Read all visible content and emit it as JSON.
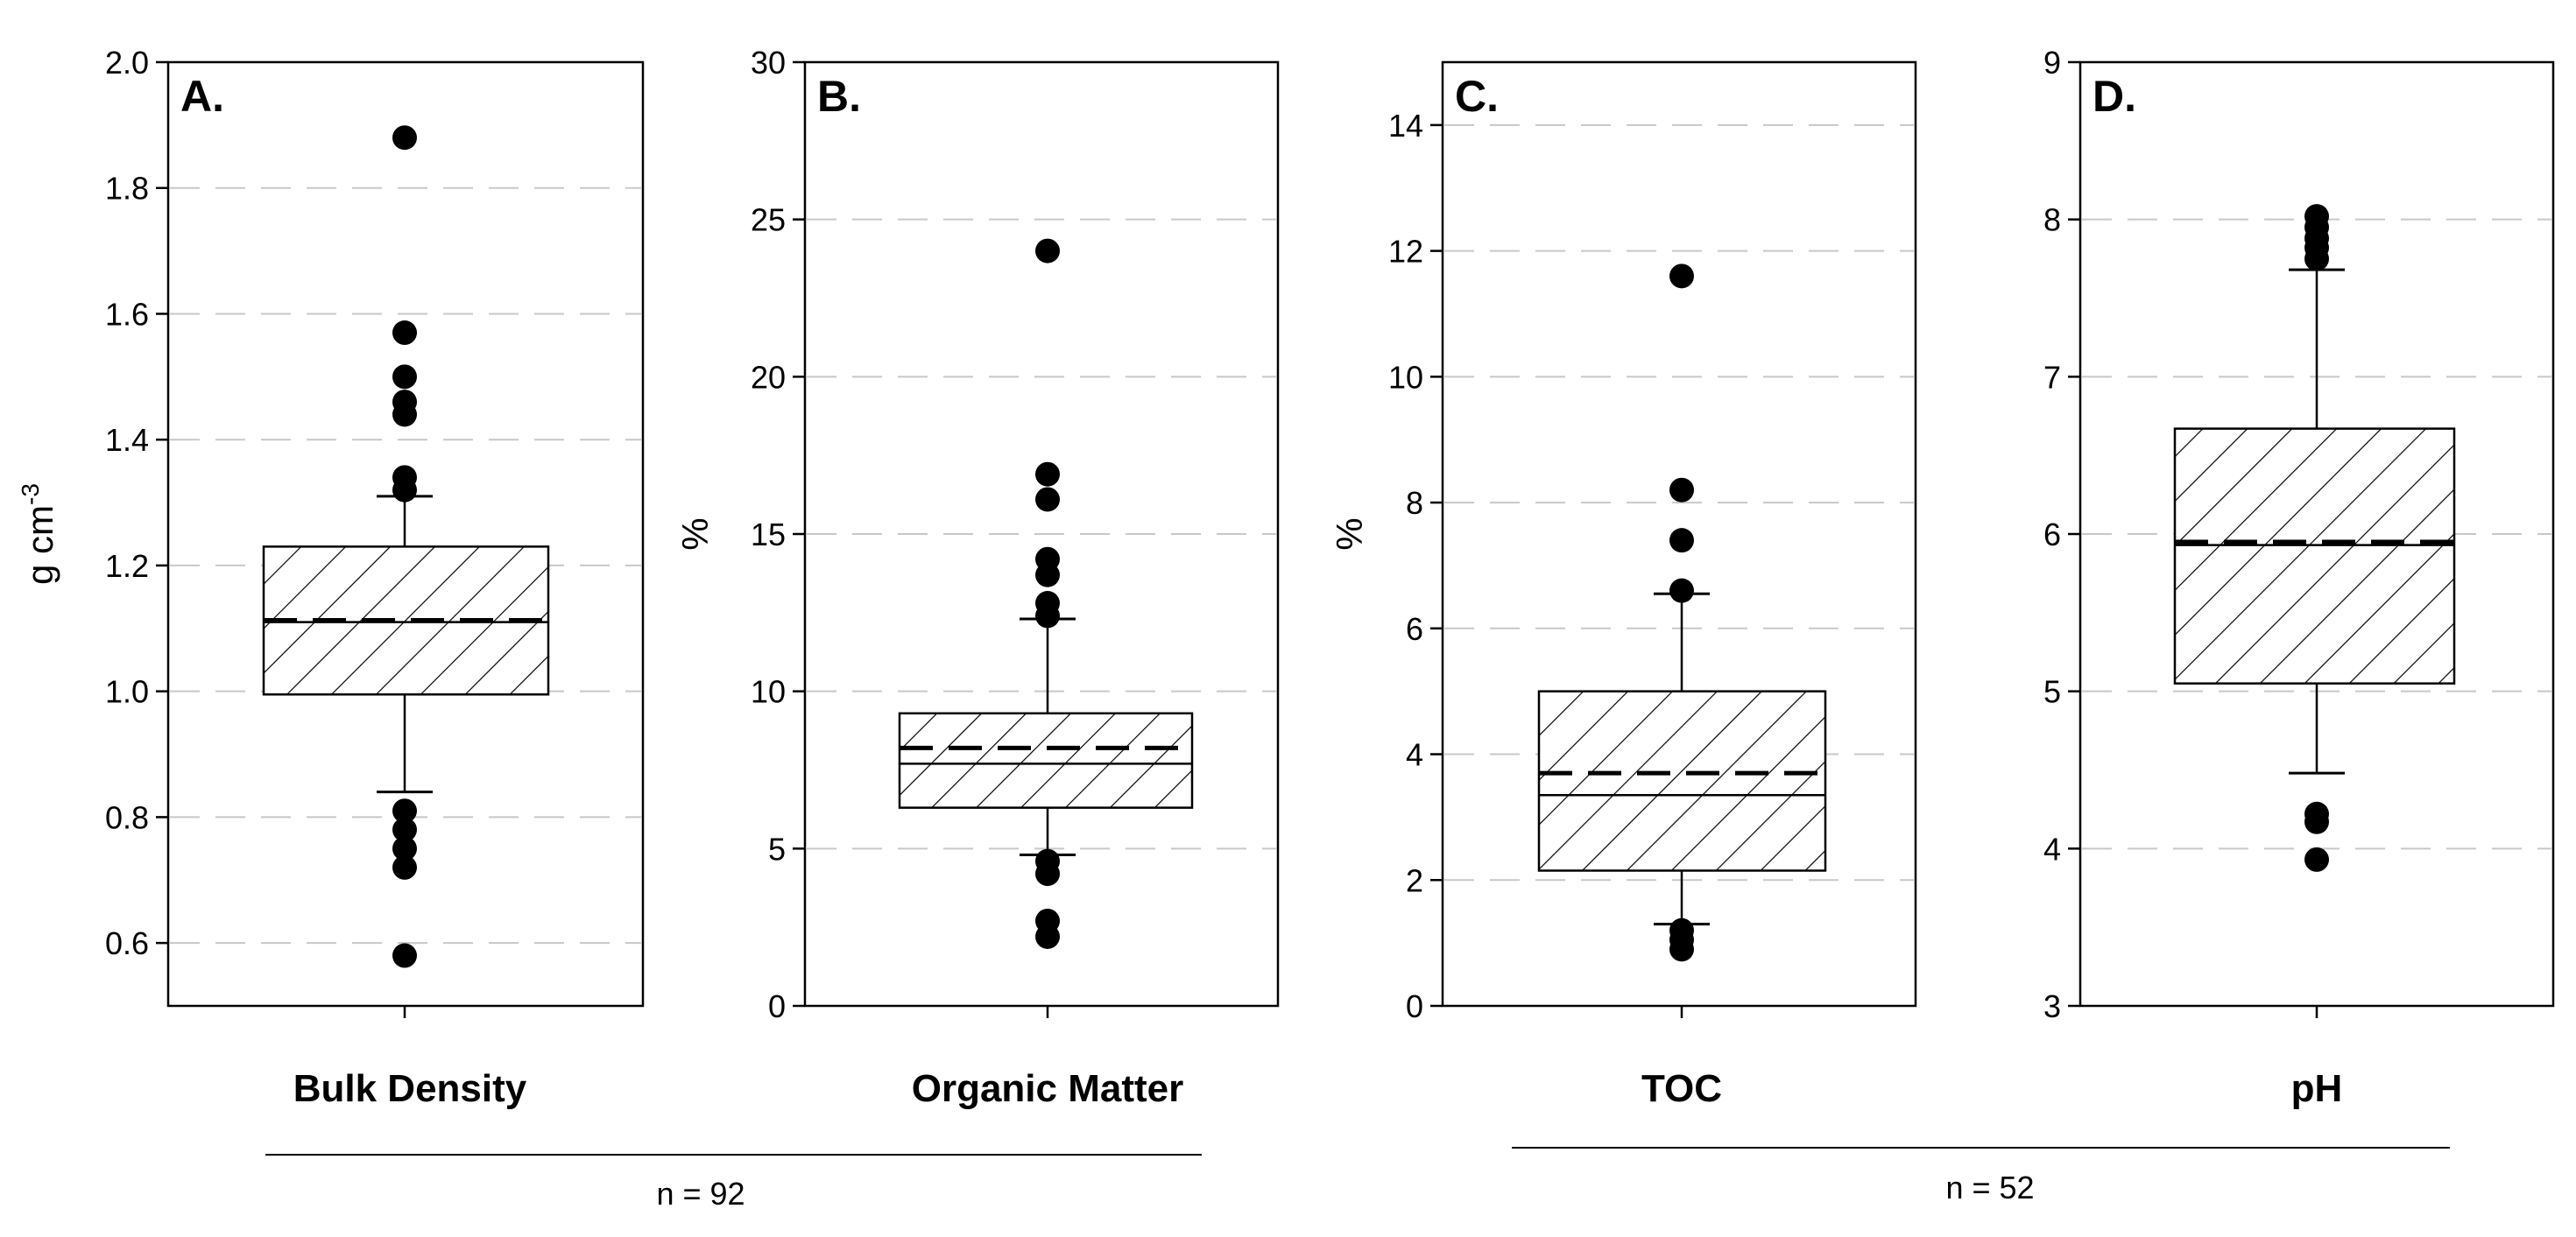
{
  "chart_data": [
    {
      "type": "box",
      "panel": "A.",
      "variable": "Bulk Density",
      "ylabel": "g cm",
      "ylabel_sup": "-3",
      "ylim": [
        0.5,
        2.0
      ],
      "yticks": [
        0.6,
        0.8,
        1.0,
        1.2,
        1.4,
        1.6,
        1.8,
        2.0
      ],
      "tick_decimals": 1,
      "box": {
        "q1": 0.995,
        "median": 1.11,
        "mean": 1.113,
        "q3": 1.23,
        "whisker_low": 0.84,
        "whisker_high": 1.31
      },
      "outliers": [
        0.58,
        0.72,
        0.75,
        0.78,
        0.81,
        1.32,
        1.34,
        1.44,
        1.46,
        1.5,
        1.57,
        1.88
      ],
      "grid": "dashed-horizontal"
    },
    {
      "type": "box",
      "panel": "B.",
      "variable": "Organic Matter",
      "ylabel": "%",
      "ylabel_sup": "",
      "ylim": [
        0,
        30
      ],
      "yticks": [
        0,
        5,
        10,
        15,
        20,
        25,
        30
      ],
      "tick_decimals": 0,
      "box": {
        "q1": 6.3,
        "median": 7.7,
        "mean": 8.2,
        "q3": 9.3,
        "whisker_low": 4.8,
        "whisker_high": 12.3
      },
      "outliers": [
        2.2,
        2.7,
        4.2,
        4.6,
        12.4,
        12.8,
        13.7,
        14.2,
        16.1,
        16.9,
        24.0
      ],
      "grid": "dashed-horizontal"
    },
    {
      "type": "box",
      "panel": "C.",
      "variable": "TOC",
      "ylabel": "%",
      "ylabel_sup": "",
      "ylim": [
        0,
        15
      ],
      "yticks": [
        0,
        2,
        4,
        6,
        8,
        10,
        12,
        14
      ],
      "tick_decimals": 0,
      "box": {
        "q1": 2.15,
        "median": 3.35,
        "mean": 3.7,
        "q3": 5.0,
        "whisker_low": 1.3,
        "whisker_high": 6.55
      },
      "outliers": [
        0.9,
        1.05,
        1.2,
        6.6,
        7.4,
        8.2,
        11.6
      ],
      "grid": "dashed-horizontal"
    },
    {
      "type": "box",
      "panel": "D.",
      "variable": "pH",
      "ylabel": "",
      "ylabel_sup": "",
      "ylim": [
        3,
        9
      ],
      "yticks": [
        3,
        4,
        5,
        6,
        7,
        8,
        9
      ],
      "tick_decimals": 0,
      "box": {
        "q1": 5.05,
        "median": 5.93,
        "mean": 5.95,
        "q3": 6.67,
        "whisker_low": 4.48,
        "whisker_high": 7.68
      },
      "outliers": [
        3.93,
        4.17,
        4.22,
        7.75,
        7.82,
        7.88,
        7.95,
        8.02
      ],
      "grid": "dashed-horizontal"
    }
  ],
  "groups": [
    {
      "label": "n = 92",
      "panels": [
        "A.",
        "B."
      ]
    },
    {
      "label": "n = 52",
      "panels": [
        "C.",
        "D."
      ]
    }
  ]
}
